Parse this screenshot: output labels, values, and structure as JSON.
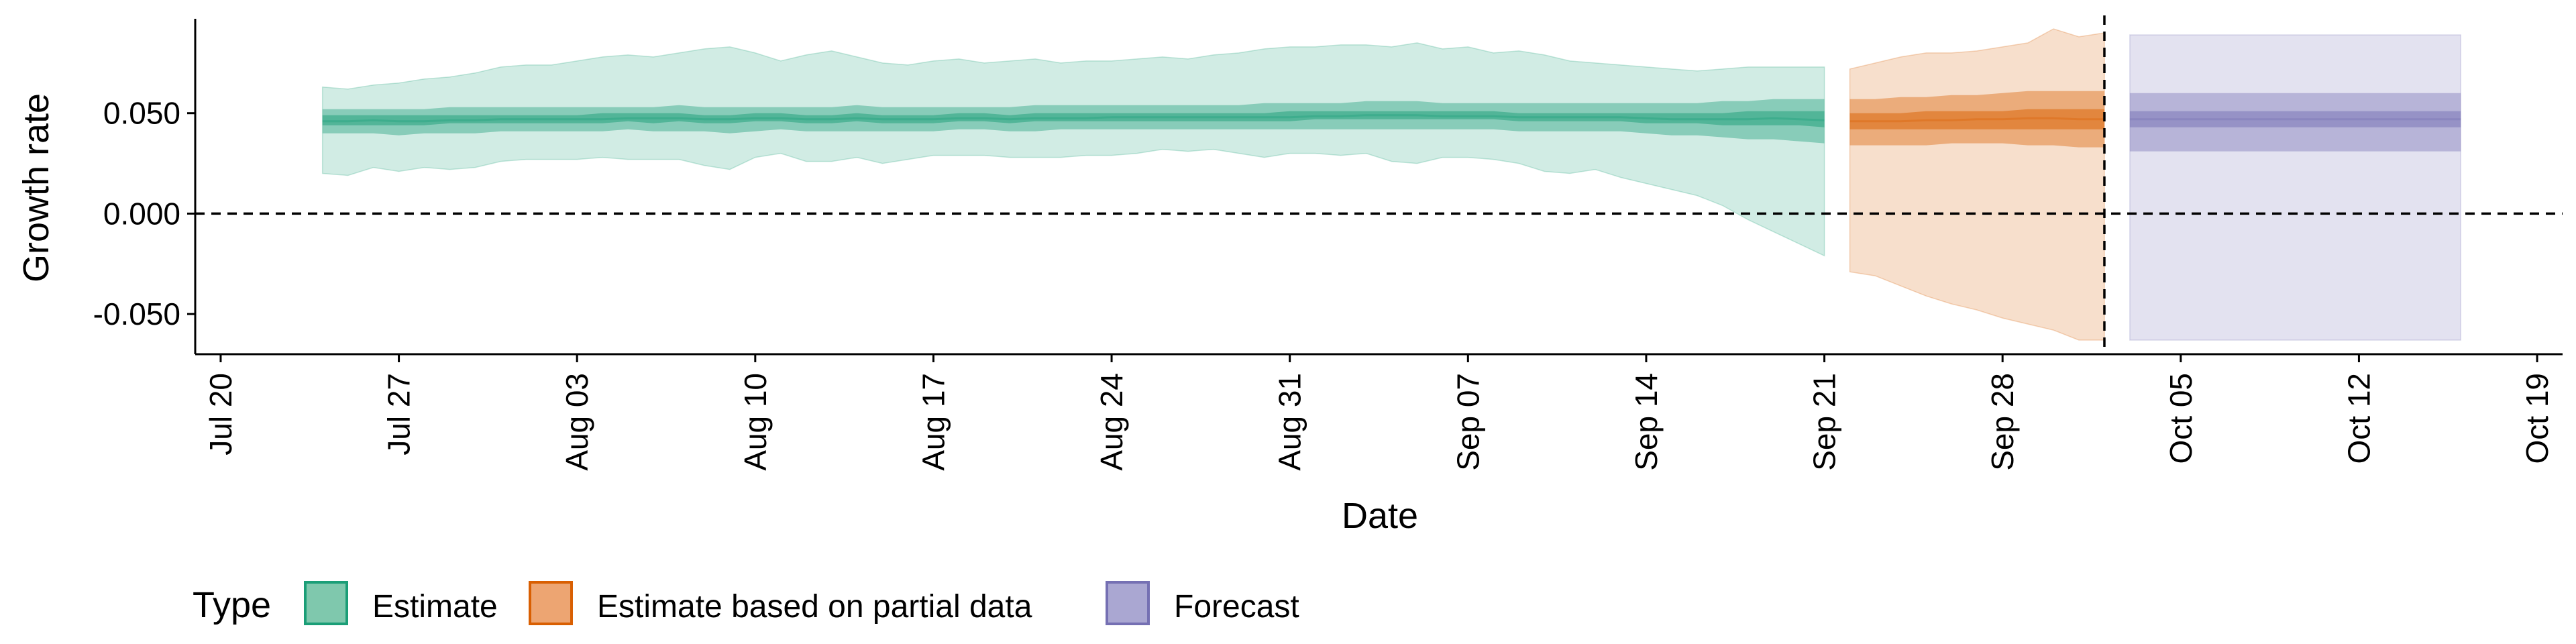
{
  "chart_data": {
    "type": "area",
    "xlabel": "Date",
    "ylabel": "Growth rate",
    "xlim": [
      "2020-07-19",
      "2020-10-20"
    ],
    "ylim": [
      -0.07,
      0.097
    ],
    "x_ticks": [
      "2020-07-20",
      "2020-07-27",
      "2020-08-03",
      "2020-08-10",
      "2020-08-17",
      "2020-08-24",
      "2020-08-31",
      "2020-09-07",
      "2020-09-14",
      "2020-09-21",
      "2020-09-28",
      "2020-10-05",
      "2020-10-12",
      "2020-10-19"
    ],
    "x_tick_labels": [
      "Jul 20",
      "Jul 27",
      "Aug 03",
      "Aug 10",
      "Aug 17",
      "Aug 24",
      "Aug 31",
      "Sep 07",
      "Sep 14",
      "Sep 21",
      "Sep 28",
      "Oct 05",
      "Oct 12",
      "Oct 19"
    ],
    "y_ticks": [
      -0.05,
      0.0,
      0.05
    ],
    "y_tick_labels": [
      "-0.050",
      "0.000",
      "0.050"
    ],
    "reference_lines": {
      "horizontal_zero": 0,
      "vertical_date": "2020-10-02"
    },
    "grid": false,
    "legend": {
      "title": "Type",
      "position": "bottom-left",
      "entries": [
        {
          "label": "Estimate",
          "fill": "#7fc8ad",
          "border": "#1b9e77"
        },
        {
          "label": "Estimate based on partial data",
          "fill": "#eda572",
          "border": "#d95f02"
        },
        {
          "label": "Forecast",
          "fill": "#aaa7d2",
          "border": "#7570b3"
        }
      ]
    },
    "series": [
      {
        "name": "Estimate",
        "color": "#1b9e77",
        "x": [
          "2020-07-24",
          "2020-07-25",
          "2020-07-26",
          "2020-07-27",
          "2020-07-28",
          "2020-07-29",
          "2020-07-30",
          "2020-07-31",
          "2020-08-01",
          "2020-08-02",
          "2020-08-03",
          "2020-08-04",
          "2020-08-05",
          "2020-08-06",
          "2020-08-07",
          "2020-08-08",
          "2020-08-09",
          "2020-08-10",
          "2020-08-11",
          "2020-08-12",
          "2020-08-13",
          "2020-08-14",
          "2020-08-15",
          "2020-08-16",
          "2020-08-17",
          "2020-08-18",
          "2020-08-19",
          "2020-08-20",
          "2020-08-21",
          "2020-08-22",
          "2020-08-23",
          "2020-08-24",
          "2020-08-25",
          "2020-08-26",
          "2020-08-27",
          "2020-08-28",
          "2020-08-29",
          "2020-08-30",
          "2020-08-31",
          "2020-09-01",
          "2020-09-02",
          "2020-09-03",
          "2020-09-04",
          "2020-09-05",
          "2020-09-06",
          "2020-09-07",
          "2020-09-08",
          "2020-09-09",
          "2020-09-10",
          "2020-09-11",
          "2020-09-12",
          "2020-09-13",
          "2020-09-14",
          "2020-09-15",
          "2020-09-16",
          "2020-09-17",
          "2020-09-18",
          "2020-09-19",
          "2020-09-20",
          "2020-09-21"
        ],
        "median": [
          0.046,
          0.046,
          0.0465,
          0.046,
          0.046,
          0.0465,
          0.0465,
          0.047,
          0.047,
          0.047,
          0.047,
          0.047,
          0.0475,
          0.0475,
          0.0475,
          0.047,
          0.047,
          0.0475,
          0.0475,
          0.047,
          0.047,
          0.0475,
          0.047,
          0.047,
          0.047,
          0.0475,
          0.0475,
          0.047,
          0.0475,
          0.0475,
          0.0475,
          0.048,
          0.048,
          0.048,
          0.048,
          0.048,
          0.048,
          0.048,
          0.048,
          0.0485,
          0.0485,
          0.049,
          0.049,
          0.049,
          0.0485,
          0.0485,
          0.0485,
          0.048,
          0.048,
          0.048,
          0.048,
          0.048,
          0.0475,
          0.047,
          0.047,
          0.047,
          0.047,
          0.0475,
          0.047,
          0.0465
        ],
        "lower_90": [
          0.02,
          0.019,
          0.023,
          0.021,
          0.023,
          0.022,
          0.023,
          0.026,
          0.027,
          0.027,
          0.027,
          0.028,
          0.027,
          0.027,
          0.027,
          0.024,
          0.022,
          0.028,
          0.03,
          0.026,
          0.026,
          0.028,
          0.025,
          0.027,
          0.029,
          0.029,
          0.029,
          0.028,
          0.028,
          0.028,
          0.029,
          0.029,
          0.03,
          0.032,
          0.031,
          0.032,
          0.03,
          0.028,
          0.03,
          0.03,
          0.029,
          0.03,
          0.026,
          0.025,
          0.028,
          0.028,
          0.027,
          0.025,
          0.021,
          0.02,
          0.022,
          0.018,
          0.015,
          0.012,
          0.009,
          0.004,
          -0.003,
          -0.009,
          -0.015,
          -0.021
        ],
        "upper_90": [
          0.063,
          0.062,
          0.064,
          0.065,
          0.067,
          0.068,
          0.07,
          0.073,
          0.074,
          0.074,
          0.076,
          0.078,
          0.079,
          0.078,
          0.08,
          0.082,
          0.083,
          0.08,
          0.076,
          0.079,
          0.081,
          0.078,
          0.075,
          0.074,
          0.076,
          0.077,
          0.075,
          0.076,
          0.077,
          0.075,
          0.076,
          0.076,
          0.077,
          0.078,
          0.077,
          0.079,
          0.08,
          0.082,
          0.083,
          0.083,
          0.084,
          0.084,
          0.083,
          0.085,
          0.082,
          0.083,
          0.08,
          0.081,
          0.079,
          0.076,
          0.075,
          0.074,
          0.073,
          0.072,
          0.071,
          0.072,
          0.073,
          0.073,
          0.073,
          0.073
        ],
        "lower_50": [
          0.04,
          0.04,
          0.04,
          0.039,
          0.04,
          0.04,
          0.04,
          0.041,
          0.041,
          0.041,
          0.041,
          0.041,
          0.042,
          0.041,
          0.041,
          0.041,
          0.04,
          0.041,
          0.042,
          0.041,
          0.041,
          0.041,
          0.041,
          0.041,
          0.041,
          0.042,
          0.042,
          0.041,
          0.041,
          0.042,
          0.042,
          0.042,
          0.042,
          0.042,
          0.042,
          0.042,
          0.042,
          0.042,
          0.042,
          0.042,
          0.042,
          0.042,
          0.042,
          0.042,
          0.042,
          0.042,
          0.042,
          0.041,
          0.041,
          0.041,
          0.041,
          0.041,
          0.04,
          0.039,
          0.039,
          0.038,
          0.037,
          0.037,
          0.036,
          0.035
        ],
        "upper_50": [
          0.052,
          0.052,
          0.052,
          0.052,
          0.052,
          0.053,
          0.053,
          0.053,
          0.053,
          0.053,
          0.053,
          0.053,
          0.053,
          0.053,
          0.054,
          0.053,
          0.053,
          0.053,
          0.053,
          0.053,
          0.053,
          0.054,
          0.053,
          0.053,
          0.053,
          0.053,
          0.053,
          0.053,
          0.054,
          0.054,
          0.054,
          0.054,
          0.054,
          0.054,
          0.054,
          0.054,
          0.054,
          0.055,
          0.055,
          0.055,
          0.055,
          0.056,
          0.056,
          0.056,
          0.055,
          0.055,
          0.055,
          0.055,
          0.055,
          0.055,
          0.055,
          0.055,
          0.055,
          0.055,
          0.055,
          0.056,
          0.056,
          0.057,
          0.057,
          0.057
        ],
        "lower_20": [
          0.044,
          0.044,
          0.044,
          0.044,
          0.044,
          0.045,
          0.045,
          0.045,
          0.045,
          0.045,
          0.045,
          0.045,
          0.046,
          0.045,
          0.046,
          0.045,
          0.045,
          0.046,
          0.046,
          0.045,
          0.045,
          0.046,
          0.045,
          0.045,
          0.045,
          0.046,
          0.046,
          0.045,
          0.046,
          0.046,
          0.046,
          0.046,
          0.046,
          0.046,
          0.046,
          0.046,
          0.046,
          0.046,
          0.046,
          0.047,
          0.047,
          0.047,
          0.047,
          0.047,
          0.047,
          0.047,
          0.047,
          0.046,
          0.046,
          0.046,
          0.046,
          0.046,
          0.045,
          0.045,
          0.045,
          0.044,
          0.044,
          0.044,
          0.044,
          0.043
        ],
        "upper_20": [
          0.049,
          0.049,
          0.049,
          0.049,
          0.049,
          0.049,
          0.049,
          0.049,
          0.049,
          0.049,
          0.049,
          0.05,
          0.05,
          0.05,
          0.05,
          0.049,
          0.049,
          0.05,
          0.05,
          0.049,
          0.049,
          0.05,
          0.049,
          0.049,
          0.049,
          0.05,
          0.05,
          0.049,
          0.05,
          0.05,
          0.05,
          0.05,
          0.05,
          0.05,
          0.05,
          0.05,
          0.05,
          0.05,
          0.051,
          0.051,
          0.051,
          0.051,
          0.051,
          0.051,
          0.051,
          0.051,
          0.051,
          0.05,
          0.05,
          0.05,
          0.05,
          0.05,
          0.05,
          0.05,
          0.05,
          0.05,
          0.051,
          0.051,
          0.051,
          0.051
        ]
      },
      {
        "name": "Estimate based on partial data",
        "color": "#d95f02",
        "x": [
          "2020-09-22",
          "2020-09-23",
          "2020-09-24",
          "2020-09-25",
          "2020-09-26",
          "2020-09-27",
          "2020-09-28",
          "2020-09-29",
          "2020-09-30",
          "2020-10-01",
          "2020-10-02"
        ],
        "median": [
          0.046,
          0.046,
          0.046,
          0.0465,
          0.0465,
          0.047,
          0.047,
          0.0475,
          0.0475,
          0.047,
          0.047
        ],
        "lower_90": [
          -0.029,
          -0.031,
          -0.036,
          -0.041,
          -0.045,
          -0.048,
          -0.052,
          -0.055,
          -0.058,
          -0.063,
          -0.063
        ],
        "upper_90": [
          0.072,
          0.075,
          0.078,
          0.08,
          0.08,
          0.081,
          0.083,
          0.085,
          0.092,
          0.088,
          0.09
        ],
        "lower_50": [
          0.034,
          0.034,
          0.034,
          0.034,
          0.035,
          0.035,
          0.035,
          0.034,
          0.034,
          0.033,
          0.033
        ],
        "upper_50": [
          0.057,
          0.057,
          0.058,
          0.058,
          0.059,
          0.059,
          0.06,
          0.061,
          0.061,
          0.061,
          0.061
        ],
        "lower_20": [
          0.042,
          0.042,
          0.042,
          0.042,
          0.042,
          0.042,
          0.042,
          0.042,
          0.042,
          0.042,
          0.042
        ],
        "upper_20": [
          0.05,
          0.05,
          0.05,
          0.051,
          0.051,
          0.051,
          0.051,
          0.052,
          0.052,
          0.052,
          0.052
        ]
      },
      {
        "name": "Forecast",
        "color": "#7570b3",
        "x": [
          "2020-10-03",
          "2020-10-16"
        ],
        "median": [
          0.047,
          0.047
        ],
        "lower_90": [
          -0.063,
          -0.063
        ],
        "upper_90": [
          0.089,
          0.089
        ],
        "lower_50": [
          0.031,
          0.031
        ],
        "upper_50": [
          0.06,
          0.06
        ],
        "lower_20": [
          0.043,
          0.043
        ],
        "upper_20": [
          0.051,
          0.051
        ]
      }
    ]
  }
}
